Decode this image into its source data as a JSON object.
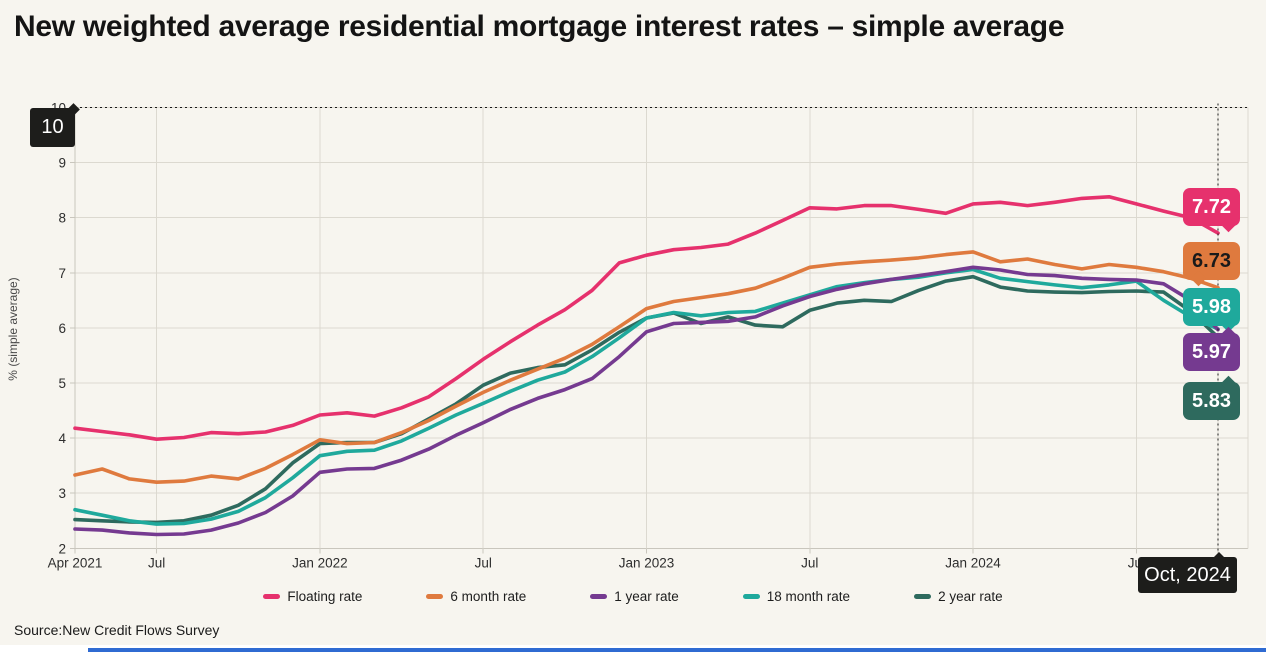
{
  "title": "New weighted average residential mortgage interest rates – simple average",
  "source": "Source:New Credit Flows Survey",
  "crosshair": {
    "y_label": "10",
    "x_label": "Oct, 2024"
  },
  "y_axis": {
    "label": "% (simple average)",
    "min": 2,
    "max": 10,
    "tick_step": 1
  },
  "x_axis": {
    "ticks": [
      {
        "label": "Apr 2021",
        "month": 0
      },
      {
        "label": "Jul",
        "month": 3
      },
      {
        "label": "Jan 2022",
        "month": 9
      },
      {
        "label": "Jul",
        "month": 15
      },
      {
        "label": "Jan 2023",
        "month": 21
      },
      {
        "label": "Jul",
        "month": 27
      },
      {
        "label": "Jan 2024",
        "month": 33
      },
      {
        "label": "Jul",
        "month": 39
      },
      {
        "label": "Oct",
        "month": 42
      }
    ]
  },
  "chart_data": {
    "type": "line",
    "title": "New weighted average residential mortgage interest rates – simple average",
    "ylabel": "% (simple average)",
    "ylim": [
      2,
      10
    ],
    "x_start": "Apr 2021",
    "x_end": "Oct 2024",
    "frequency": "monthly",
    "n_points": 43,
    "grid": true,
    "legend_position": "bottom",
    "hover_point": {
      "x": "Oct, 2024",
      "y": 10
    },
    "series": [
      {
        "name": "Floating rate",
        "color": "#e6316d",
        "label_text_color": "#ffffff",
        "end_value": "7.72",
        "values": [
          4.18,
          4.12,
          4.06,
          3.98,
          4.01,
          4.1,
          4.08,
          4.11,
          4.23,
          4.42,
          4.46,
          4.4,
          4.55,
          4.75,
          5.08,
          5.43,
          5.75,
          6.05,
          6.33,
          6.68,
          7.18,
          7.32,
          7.42,
          7.46,
          7.52,
          7.72,
          7.95,
          8.18,
          8.16,
          8.22,
          8.22,
          8.15,
          8.08,
          8.25,
          8.28,
          8.22,
          8.28,
          8.35,
          8.38,
          8.25,
          8.12,
          8.0,
          7.72
        ]
      },
      {
        "name": "6 month rate",
        "color": "#df7a3e",
        "label_text_color": "#1a1a1a",
        "end_value": "6.73",
        "values": [
          3.33,
          3.44,
          3.26,
          3.2,
          3.22,
          3.31,
          3.26,
          3.45,
          3.7,
          3.97,
          3.9,
          3.92,
          4.1,
          4.32,
          4.58,
          4.83,
          5.05,
          5.25,
          5.45,
          5.7,
          6.02,
          6.35,
          6.48,
          6.55,
          6.62,
          6.72,
          6.9,
          7.1,
          7.16,
          7.2,
          7.23,
          7.27,
          7.33,
          7.38,
          7.2,
          7.25,
          7.15,
          7.07,
          7.15,
          7.1,
          7.02,
          6.9,
          6.73
        ]
      },
      {
        "name": "1 year rate",
        "color": "#753a90",
        "label_text_color": "#ffffff",
        "end_value": "5.97",
        "values": [
          2.35,
          2.33,
          2.28,
          2.25,
          2.26,
          2.33,
          2.46,
          2.65,
          2.95,
          3.38,
          3.44,
          3.45,
          3.6,
          3.8,
          4.05,
          4.28,
          4.52,
          4.72,
          4.88,
          5.08,
          5.48,
          5.93,
          6.08,
          6.1,
          6.12,
          6.2,
          6.4,
          6.57,
          6.7,
          6.8,
          6.88,
          6.95,
          7.02,
          7.1,
          7.05,
          6.97,
          6.95,
          6.9,
          6.88,
          6.87,
          6.8,
          6.5,
          5.97
        ]
      },
      {
        "name": "18 month rate",
        "color": "#1fa99c",
        "label_text_color": "#ffffff",
        "end_value": "5.98",
        "values": [
          2.7,
          2.6,
          2.5,
          2.44,
          2.45,
          2.53,
          2.67,
          2.92,
          3.28,
          3.68,
          3.76,
          3.78,
          3.95,
          4.18,
          4.42,
          4.63,
          4.85,
          5.05,
          5.2,
          5.48,
          5.82,
          6.18,
          6.28,
          6.22,
          6.28,
          6.3,
          6.45,
          6.6,
          6.75,
          6.82,
          6.88,
          6.92,
          7.0,
          7.06,
          6.9,
          6.84,
          6.78,
          6.73,
          6.78,
          6.85,
          6.5,
          6.2,
          5.98
        ]
      },
      {
        "name": "2 year rate",
        "color": "#2e6a5e",
        "label_text_color": "#ffffff",
        "end_value": "5.83",
        "values": [
          2.52,
          2.5,
          2.48,
          2.47,
          2.5,
          2.6,
          2.78,
          3.08,
          3.55,
          3.9,
          3.92,
          3.92,
          4.08,
          4.35,
          4.62,
          4.96,
          5.18,
          5.28,
          5.33,
          5.6,
          5.92,
          6.18,
          6.27,
          6.08,
          6.2,
          6.05,
          6.02,
          6.32,
          6.45,
          6.5,
          6.48,
          6.68,
          6.85,
          6.93,
          6.74,
          6.67,
          6.65,
          6.64,
          6.66,
          6.67,
          6.65,
          6.3,
          5.83
        ]
      }
    ]
  },
  "colors": {
    "background": "#f7f5ef",
    "grid": "#dcd9d0",
    "axis_line": "#c9c6bd",
    "crosshair": "#1a1a1a",
    "tooltip_bg": "#1d1d1b",
    "tooltip_text": "#ffffff",
    "accent_bar": "#2f6bd2"
  }
}
